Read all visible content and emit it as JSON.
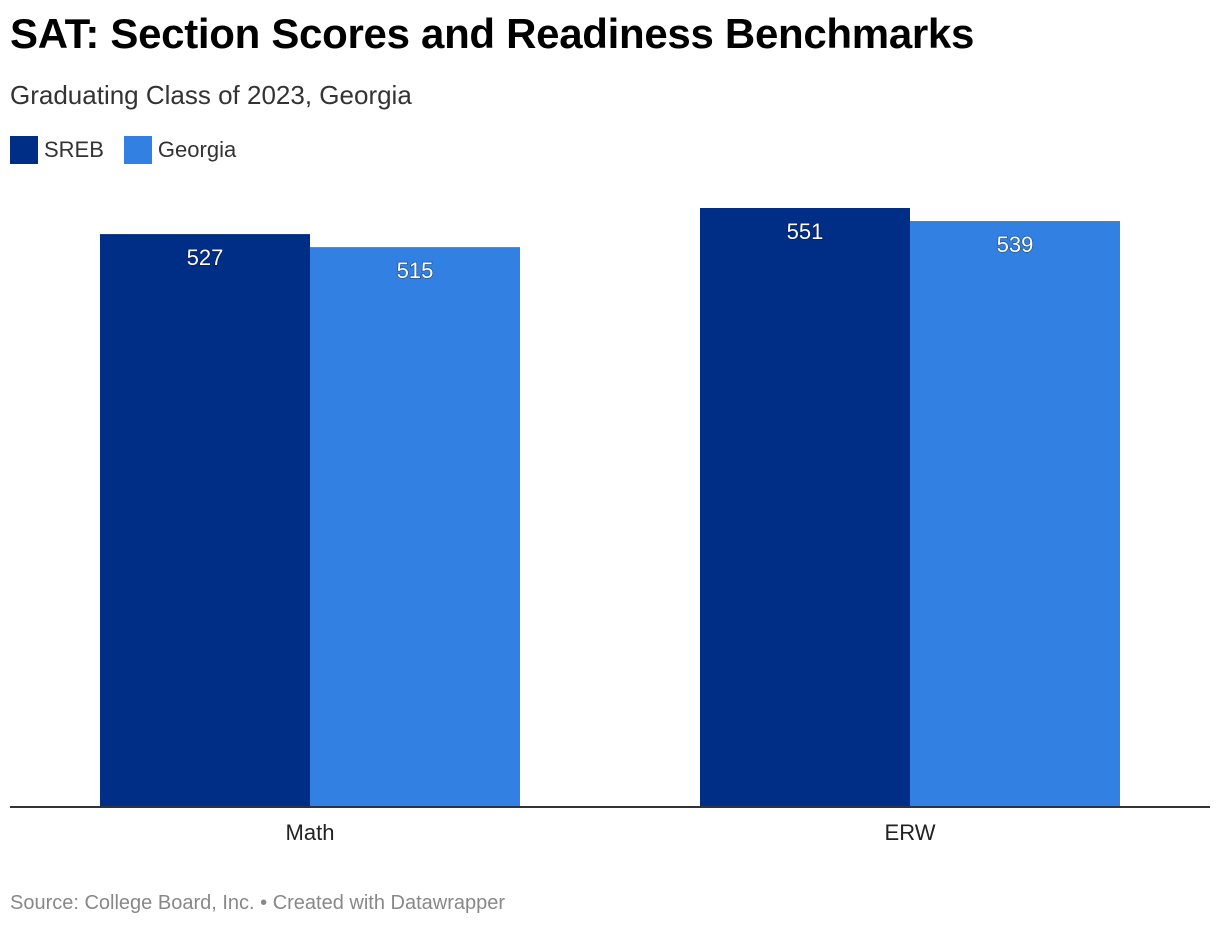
{
  "header": {
    "title": "SAT: Section Scores and Readiness Benchmarks",
    "subtitle": "Graduating Class of 2023, Georgia"
  },
  "legend": {
    "items": [
      {
        "label": "SREB",
        "color": "#002e87"
      },
      {
        "label": "Georgia",
        "color": "#3180e2"
      }
    ],
    "placement": "top-left"
  },
  "chart_data": {
    "type": "bar",
    "title": "SAT: Section Scores and Readiness Benchmarks",
    "subtitle": "Graduating Class of 2023, Georgia",
    "categories": [
      "Math",
      "ERW"
    ],
    "series": [
      {
        "name": "SREB",
        "color": "#002e87",
        "values": [
          527,
          551
        ]
      },
      {
        "name": "Georgia",
        "color": "#3180e2",
        "values": [
          515,
          539
        ]
      }
    ],
    "xlabel": "",
    "ylabel": "",
    "ylim": [
      0,
      560
    ],
    "grid": false,
    "data_labels": true
  },
  "footer": {
    "source": "Source: College Board, Inc. • Created with Datawrapper"
  }
}
